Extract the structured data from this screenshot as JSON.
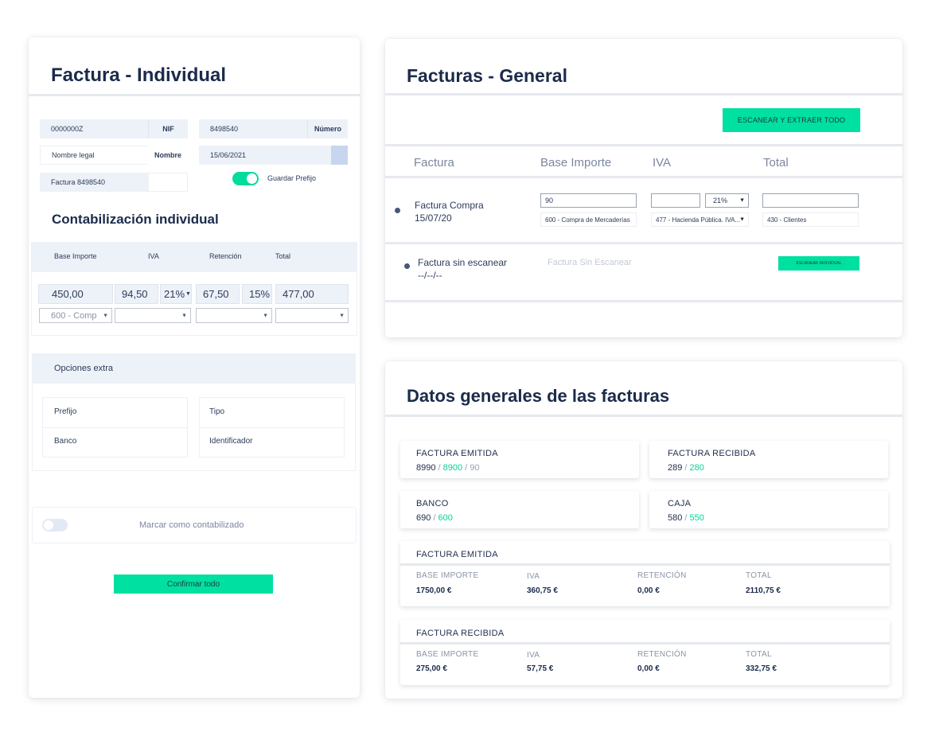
{
  "individual": {
    "title": "Factura - Individual",
    "nif_value": "0000000Z",
    "nif_label": "NIF",
    "numero_value": "8498540",
    "numero_label": "Número",
    "nombre_value": "Nombre legal",
    "nombre_label": "Nombre",
    "fecha_value": "15/06/2021",
    "factura_value": "Factura 8498540",
    "guardar_prefijo": "Guardar Prefijo",
    "guardar_prefijo_on": true,
    "section_title": "Contabilización individual",
    "col_base": "Base Importe",
    "col_iva": "IVA",
    "col_retencion": "Retención",
    "col_total": "Total",
    "base": "450,00",
    "iva": "94,50",
    "iva_pct": "21%",
    "retencion": "67,50",
    "retencion_pct": "15%",
    "total": "477,00",
    "cuenta_base": "600 - Comp",
    "opciones_title": "Opciones extra",
    "prefijo": "Prefijo",
    "tipo": "Tipo",
    "banco": "Banco",
    "identificador": "Identificador",
    "marcar": "Marcar como contabilizado",
    "confirmar": "Confirmar todo"
  },
  "general": {
    "title": "Facturas - General",
    "scan_all": "ESCANEAR Y EXTRAER TODO",
    "col_factura": "Factura",
    "col_base": "Base Importe",
    "col_iva": "IVA",
    "col_total": "Total",
    "row1": {
      "name": "Factura Compra",
      "date": "15/07/20",
      "base": "90",
      "iva_pct": "21%",
      "cuenta_base": "600 - Compra de Mercaderías",
      "cuenta_iva": "477 - Hacienda Pública. IVA...",
      "cuenta_total": "430 - Clientes"
    },
    "row2": {
      "name": "Factura sin escanear",
      "date": "--/--/--",
      "placeholder": "Factura Sin Escanear",
      "button": "ESCANEAR INDIVIDUAL"
    }
  },
  "datos": {
    "title": "Datos generales de las facturas",
    "emitida": {
      "label": "FACTURA EMITIDA",
      "a": "8990",
      "b": "8900",
      "c": "90"
    },
    "recibida": {
      "label": "FACTURA RECIBIDA",
      "a": "289",
      "b": "280"
    },
    "banco": {
      "label": "BANCO",
      "a": "690",
      "b": "600"
    },
    "caja": {
      "label": "CAJA",
      "a": "580",
      "b": "550"
    },
    "sep": "/",
    "sum_emitida": {
      "label": "FACTURA EMITIDA",
      "h_base": "BASE IMPORTE",
      "h_iva": "IVA",
      "h_ret": "RETENCIÓN",
      "h_total": "TOTAL",
      "base": "1750,00 €",
      "iva": "360,75 €",
      "ret": "0,00 €",
      "total": "2110,75 €"
    },
    "sum_recibida": {
      "label": "FACTURA RECIBIDA",
      "h_base": "BASE IMPORTE",
      "h_iva": "IVA",
      "h_ret": "RETENCIÓN",
      "h_total": "TOTAL",
      "base": "275,00 €",
      "iva": "57,75 €",
      "ret": "0,00 €",
      "total": "332,75 €"
    }
  },
  "colors": {
    "accent": "#00e0a0",
    "navy": "#1b2b4b",
    "cell": "#edf1f8"
  }
}
